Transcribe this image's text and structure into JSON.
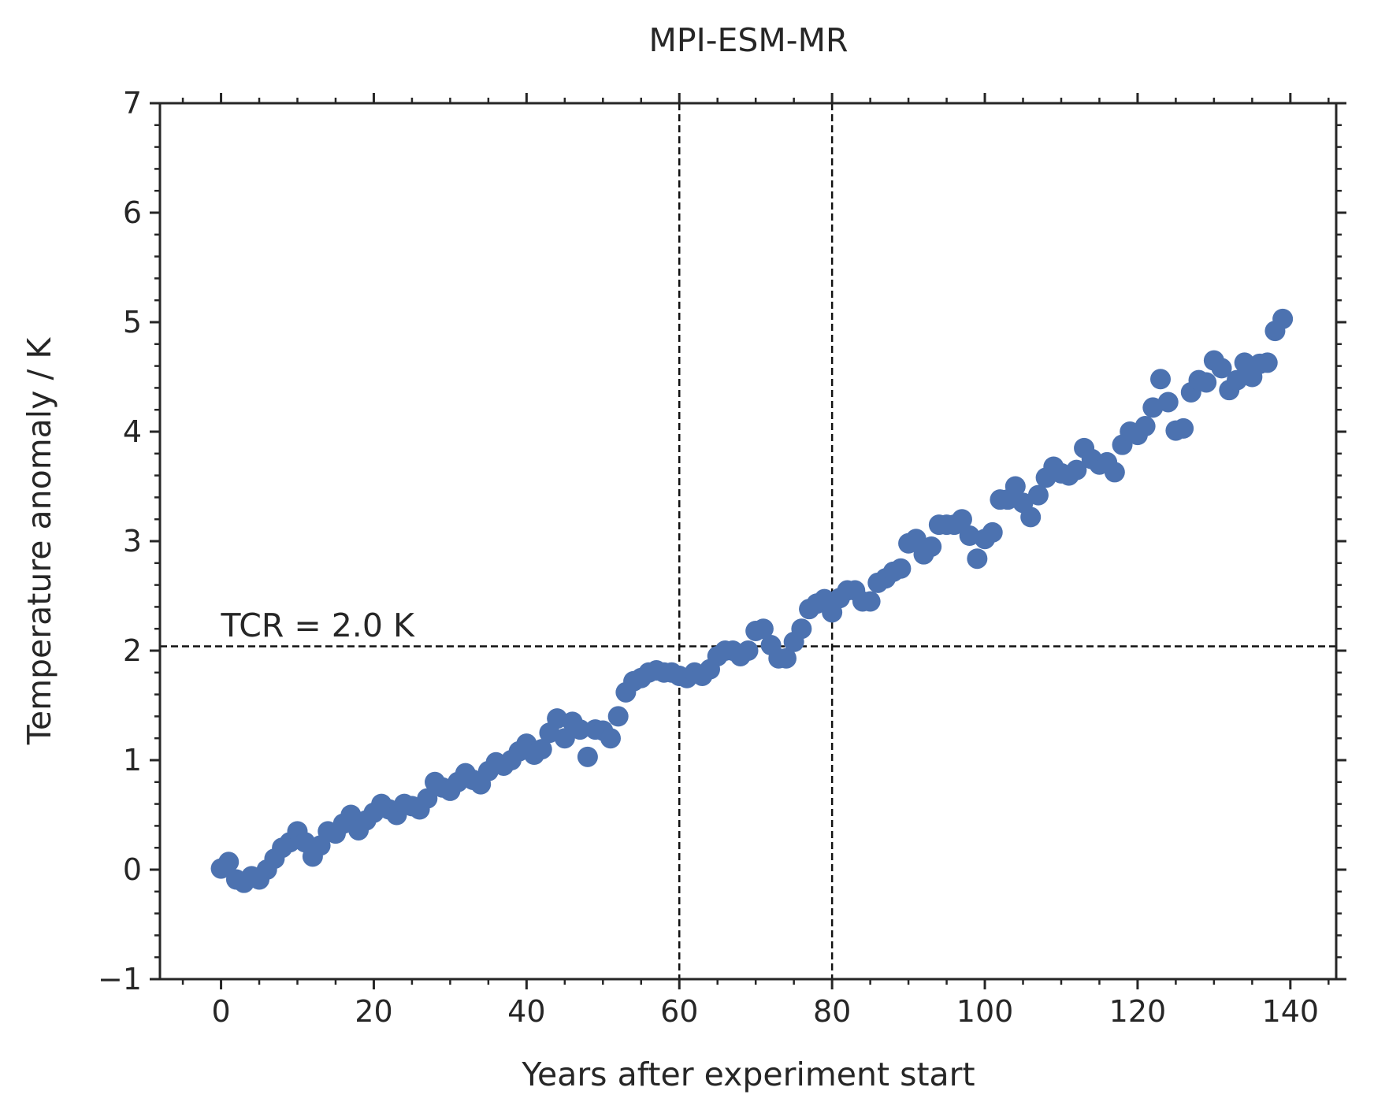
{
  "chart_data": {
    "type": "scatter",
    "title": "MPI-ESM-MR",
    "xlabel": "Years after experiment start",
    "ylabel": "Temperature anomaly / K",
    "xlim": [
      -8,
      146
    ],
    "ylim": [
      -1,
      7
    ],
    "x_ticks": [
      0,
      20,
      40,
      60,
      80,
      100,
      120,
      140
    ],
    "x_tick_labels": [
      "0",
      "20",
      "40",
      "60",
      "80",
      "100",
      "120",
      "140"
    ],
    "y_ticks": [
      -1,
      0,
      1,
      2,
      3,
      4,
      5,
      6,
      7
    ],
    "y_tick_labels": [
      "−1",
      "0",
      "1",
      "2",
      "3",
      "4",
      "5",
      "6",
      "7"
    ],
    "grid": false,
    "marker_color": "#4c72b0",
    "series": [
      {
        "x": [
          0,
          1,
          2,
          3,
          4,
          5,
          6,
          7,
          8,
          9,
          10,
          11,
          12,
          13,
          14,
          15,
          16,
          17,
          18,
          19,
          20,
          21,
          22,
          23,
          24,
          25,
          26,
          27,
          28,
          29,
          30,
          31,
          32,
          33,
          34,
          35,
          36,
          37,
          38,
          39,
          40,
          41,
          42,
          43,
          44,
          45,
          46,
          47,
          48,
          49,
          50,
          51,
          52,
          53,
          54,
          55,
          56,
          57,
          58,
          59,
          60,
          61,
          62,
          63,
          64,
          65,
          66,
          67,
          68,
          69,
          70,
          71,
          72,
          73,
          74,
          75,
          76,
          77,
          78,
          79,
          80,
          81,
          82,
          83,
          84,
          85,
          86,
          87,
          88,
          89,
          90,
          91,
          92,
          93,
          94,
          95,
          96,
          97,
          98,
          99,
          100,
          101,
          102,
          103,
          104,
          105,
          106,
          107,
          108,
          109,
          110,
          111,
          112,
          113,
          114,
          115,
          116,
          117,
          118,
          119,
          120,
          121,
          122,
          123,
          124,
          125,
          126,
          127,
          128,
          129,
          130,
          131,
          132,
          133,
          134,
          135,
          136,
          137,
          138,
          139
        ],
        "y": [
          0.01,
          0.07,
          -0.09,
          -0.12,
          -0.06,
          -0.09,
          0.0,
          0.1,
          0.2,
          0.25,
          0.35,
          0.25,
          0.12,
          0.22,
          0.35,
          0.33,
          0.42,
          0.5,
          0.36,
          0.45,
          0.52,
          0.6,
          0.55,
          0.5,
          0.6,
          0.58,
          0.55,
          0.65,
          0.8,
          0.75,
          0.72,
          0.8,
          0.88,
          0.82,
          0.78,
          0.9,
          0.98,
          0.95,
          1.0,
          1.08,
          1.15,
          1.05,
          1.1,
          1.25,
          1.38,
          1.2,
          1.35,
          1.28,
          1.03,
          1.28,
          1.27,
          1.2,
          1.4,
          1.62,
          1.72,
          1.75,
          1.8,
          1.82,
          1.8,
          1.8,
          1.77,
          1.75,
          1.8,
          1.77,
          1.83,
          1.95,
          2.0,
          2.0,
          1.95,
          2.0,
          2.18,
          2.2,
          2.05,
          1.93,
          1.93,
          2.08,
          2.2,
          2.38,
          2.43,
          2.47,
          2.35,
          2.48,
          2.55,
          2.55,
          2.45,
          2.45,
          2.62,
          2.66,
          2.72,
          2.75,
          2.98,
          3.02,
          2.88,
          2.95,
          3.15,
          3.15,
          3.15,
          3.2,
          3.05,
          2.84,
          3.02,
          3.08,
          3.38,
          3.38,
          3.5,
          3.35,
          3.22,
          3.42,
          3.58,
          3.68,
          3.62,
          3.6,
          3.65,
          3.85,
          3.75,
          3.7,
          3.72,
          3.63,
          3.88,
          4.0,
          3.97,
          4.05,
          4.22,
          4.48,
          4.27,
          4.01,
          4.03,
          4.36,
          4.47,
          4.45,
          4.65,
          4.58,
          4.38,
          4.47,
          4.63,
          4.5,
          4.62,
          4.63,
          4.92,
          5.03
        ]
      }
    ],
    "reference_lines": {
      "vertical_x": [
        60,
        80
      ],
      "horizontal_y": [
        2.04
      ]
    },
    "annotation": {
      "text": "TCR = 2.0 K",
      "x": 0,
      "y": 2.13
    }
  }
}
